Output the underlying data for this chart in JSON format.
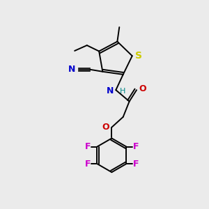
{
  "background_color": "#ebebeb",
  "atom_colors": {
    "C": "#000000",
    "N": "#0000cc",
    "O": "#cc0000",
    "S": "#cccc00",
    "F": "#cc00cc",
    "H": "#008888"
  },
  "bond_color": "#000000",
  "figsize": [
    3.0,
    3.0
  ],
  "dpi": 100
}
